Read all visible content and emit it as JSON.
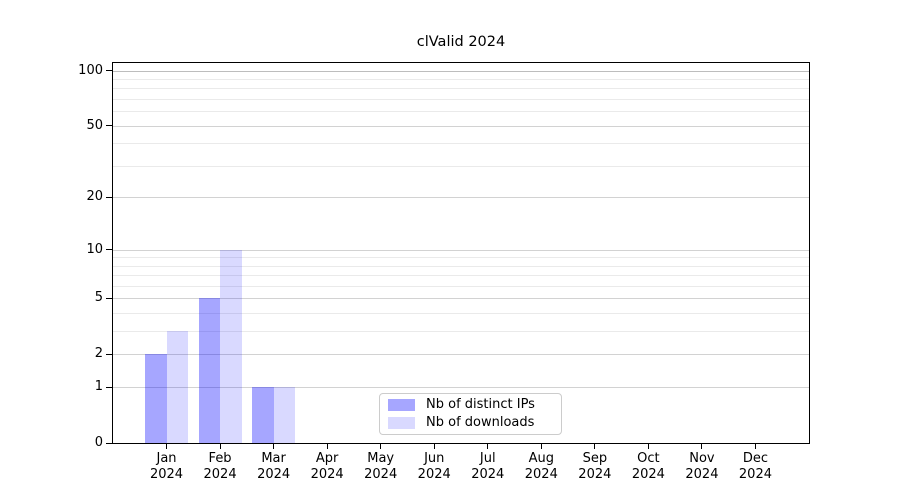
{
  "chart_data": {
    "type": "bar",
    "title": "clValid 2024",
    "categories": [
      "Jan",
      "Feb",
      "Mar",
      "Apr",
      "May",
      "Jun",
      "Jul",
      "Aug",
      "Sep",
      "Oct",
      "Nov",
      "Dec"
    ],
    "x_tick_year": "2024",
    "series": [
      {
        "name": "Nb of distinct IPs",
        "color": "rgba(0,0,255,0.35)",
        "values": [
          2,
          5,
          1,
          0,
          0,
          0,
          0,
          0,
          0,
          0,
          0,
          0
        ]
      },
      {
        "name": "Nb of downloads",
        "color": "rgba(0,0,255,0.15)",
        "values": [
          3,
          10,
          1,
          0,
          0,
          0,
          0,
          0,
          0,
          0,
          0,
          0
        ]
      }
    ],
    "y_axis": {
      "scale": "log10(value+1)",
      "tick_values": [
        0,
        1,
        2,
        5,
        10,
        20,
        50,
        100
      ],
      "minor_gridline_values": [
        3,
        4,
        6,
        7,
        8,
        9,
        30,
        40,
        60,
        70,
        80,
        90
      ],
      "max": 110
    },
    "xlabel": "",
    "ylabel": "",
    "grid": "horizontal",
    "legend": {
      "position": "lower-center"
    }
  },
  "colors": {
    "background": "#ffffff",
    "spine": "#000000",
    "tick": "#000000",
    "text": "#000000",
    "grid_major": "#d2d2d2",
    "grid_minor": "#eaeaea",
    "grid_top": "#bdbdbd",
    "legend_border": "#cccccc",
    "legend_background": "rgba(255,255,255,0.9)"
  }
}
